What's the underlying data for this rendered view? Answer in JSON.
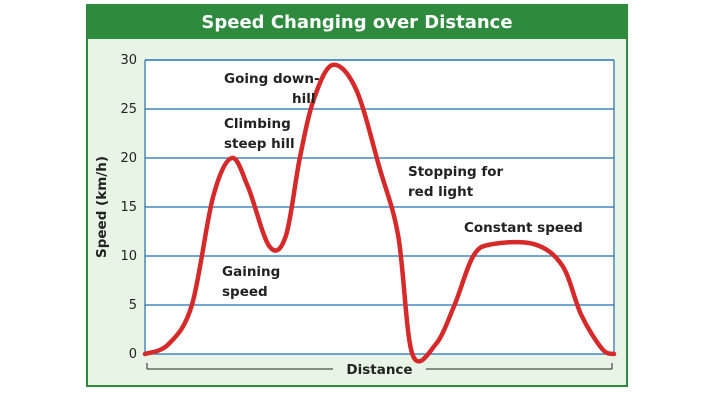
{
  "chart_data": {
    "type": "line",
    "title": "Speed Changing over Distance",
    "xlabel": "Distance",
    "ylabel": "Speed (km/h)",
    "ylim": [
      0,
      30
    ],
    "yticks": [
      "0",
      "5",
      "10",
      "15",
      "20",
      "25",
      "30"
    ],
    "grid": true,
    "series": [
      {
        "color": "#d62a2a",
        "points": [
          [
            0.0,
            0
          ],
          [
            0.05,
            1
          ],
          [
            0.1,
            5
          ],
          [
            0.145,
            16
          ],
          [
            0.185,
            20
          ],
          [
            0.22,
            17
          ],
          [
            0.265,
            11
          ],
          [
            0.3,
            12
          ],
          [
            0.33,
            20
          ],
          [
            0.36,
            26
          ],
          [
            0.4,
            29.5
          ],
          [
            0.45,
            27
          ],
          [
            0.5,
            19
          ],
          [
            0.54,
            12
          ],
          [
            0.57,
            0
          ],
          [
            0.62,
            1
          ],
          [
            0.66,
            5
          ],
          [
            0.7,
            10
          ],
          [
            0.74,
            11.2
          ],
          [
            0.83,
            11.2
          ],
          [
            0.89,
            9
          ],
          [
            0.93,
            4
          ],
          [
            0.975,
            0.5
          ],
          [
            1.0,
            0
          ]
        ]
      }
    ],
    "annotations": [
      {
        "lines": [
          "Going down-",
          "hill"
        ]
      },
      {
        "lines": [
          "Climbing",
          "steep hill"
        ]
      },
      {
        "lines": [
          "Stopping for",
          "red light"
        ]
      },
      {
        "lines": [
          "Constant speed"
        ]
      },
      {
        "lines": [
          "Gaining",
          "speed"
        ]
      }
    ]
  },
  "colors": {
    "frame_green": "#2e8b3e",
    "panel_bg": "#e8f5e6",
    "plot_bg": "#ffffff",
    "grid_line": "#1f6fb3",
    "curve": "#d62a2a"
  }
}
